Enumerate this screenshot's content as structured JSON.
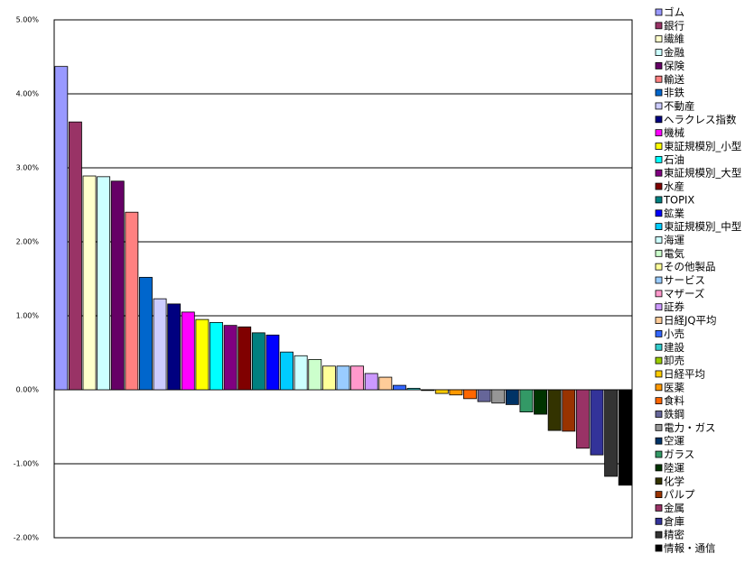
{
  "chart_data": {
    "type": "bar",
    "categories": [
      "ゴム",
      "銀行",
      "繊維",
      "金融",
      "保険",
      "輸送",
      "非鉄",
      "不動産",
      "ヘラクレス指数",
      "機械",
      "東証規模別_小型",
      "石油",
      "東証規模別_大型",
      "水産",
      "TOPIX",
      "鉱業",
      "東証規模別_中型",
      "海運",
      "電気",
      "その他製品",
      "サービス",
      "マザーズ",
      "証券",
      "日経JQ平均",
      "小売",
      "建設",
      "卸売",
      "日経平均",
      "医薬",
      "食料",
      "鉄鋼",
      "電力・ガス",
      "空運",
      "ガラス",
      "陸運",
      "化学",
      "パルプ",
      "金属",
      "倉庫",
      "精密",
      "情報・通信"
    ],
    "values": [
      4.37,
      3.62,
      2.89,
      2.88,
      2.82,
      2.4,
      1.52,
      1.23,
      1.16,
      1.05,
      0.95,
      0.91,
      0.87,
      0.85,
      0.77,
      0.74,
      0.51,
      0.46,
      0.41,
      0.32,
      0.32,
      0.32,
      0.22,
      0.17,
      0.06,
      0.02,
      -0.01,
      -0.05,
      -0.07,
      -0.12,
      -0.16,
      -0.18,
      -0.2,
      -0.3,
      -0.33,
      -0.55,
      -0.56,
      -0.79,
      -0.88,
      -1.17,
      -1.29
    ],
    "colors": [
      "#9999ff",
      "#993366",
      "#ffffcc",
      "#ccffff",
      "#660066",
      "#ff8080",
      "#0066cc",
      "#ccccff",
      "#000080",
      "#ff00ff",
      "#ffff00",
      "#00ffff",
      "#800080",
      "#800000",
      "#008080",
      "#0000ff",
      "#00ccff",
      "#ccffff",
      "#ccffcc",
      "#ffff99",
      "#99ccff",
      "#ff99cc",
      "#cc99ff",
      "#ffcc99",
      "#3366ff",
      "#33cccc",
      "#99cc00",
      "#ffcc00",
      "#ff9900",
      "#ff6600",
      "#666699",
      "#969696",
      "#003366",
      "#339966",
      "#003300",
      "#333300",
      "#993300",
      "#993366",
      "#333399",
      "#333333",
      "#000000"
    ],
    "ylim": [
      -2,
      5
    ],
    "yticks": [
      {
        "value": 5,
        "label": "5.00%"
      },
      {
        "value": 4,
        "label": "4.00%"
      },
      {
        "value": 3,
        "label": "3.00%"
      },
      {
        "value": 2,
        "label": "2.00%"
      },
      {
        "value": 1,
        "label": "1.00%"
      },
      {
        "value": 0,
        "label": "0.00%"
      },
      {
        "value": -1,
        "label": "-1.00%"
      },
      {
        "value": -2,
        "label": "-2.00%"
      }
    ],
    "grid": true
  }
}
